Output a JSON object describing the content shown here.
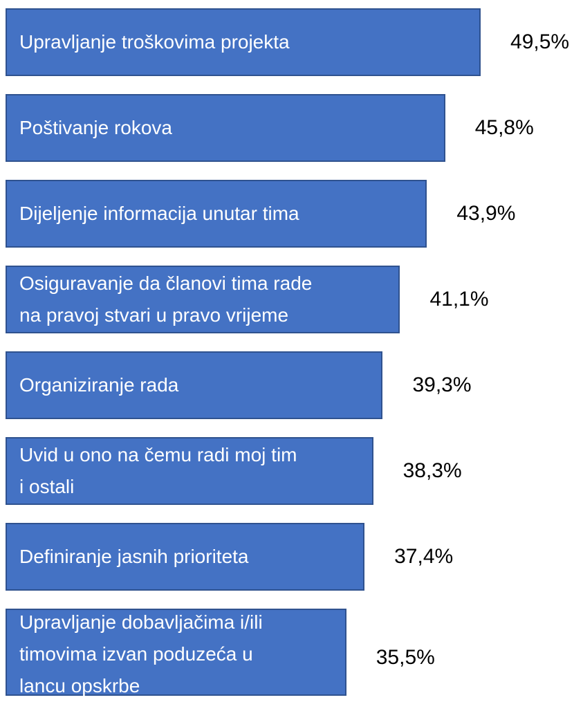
{
  "chart_data": {
    "type": "bar",
    "orientation": "horizontal",
    "categories": [
      "Upravljanje troškovima projekta",
      "Poštivanje rokova",
      "Dijeljenje informacija unutar tima",
      "Osiguravanje da članovi tima rade\nna pravoj stvari u pravo vrijeme",
      "Organiziranje rada",
      "Uvid u ono na čemu radi moj tim\ni ostali",
      "Definiranje jasnih prioriteta",
      "Upravljanje dobavljačima i/ili\ntimovima izvan poduzeća u\nlancu opskrbe"
    ],
    "values": [
      49.5,
      45.8,
      43.9,
      41.1,
      39.3,
      38.3,
      37.4,
      35.5
    ],
    "value_labels": [
      "49,5%",
      "45,8%",
      "43,9%",
      "41,1%",
      "39,3%",
      "38,3%",
      "37,4%",
      "35,5%"
    ],
    "color": "#4472c4"
  }
}
